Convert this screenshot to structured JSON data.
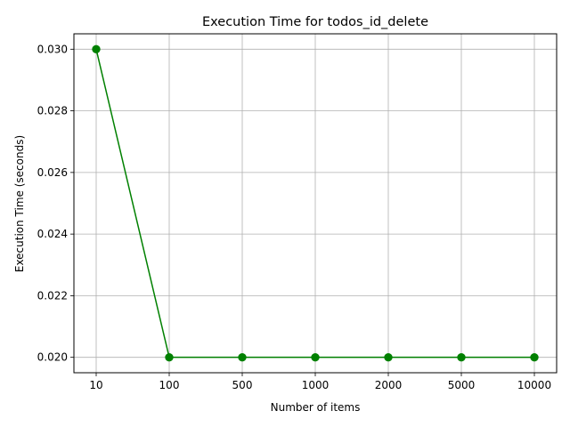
{
  "chart_data": {
    "type": "line",
    "title": "Execution Time for todos_id_delete",
    "xlabel": "Number of items",
    "ylabel": "Execution Time (seconds)",
    "categories": [
      "10",
      "100",
      "500",
      "1000",
      "2000",
      "5000",
      "10000"
    ],
    "series": [
      {
        "values": [
          0.03,
          0.02,
          0.02,
          0.02,
          0.02,
          0.02,
          0.02
        ],
        "color": "#008000",
        "marker": "circle"
      }
    ],
    "yticks": [
      0.02,
      0.022,
      0.024,
      0.026,
      0.028,
      0.03
    ],
    "ylim": [
      0.0195,
      0.0305
    ],
    "grid": true,
    "legend": "none"
  }
}
